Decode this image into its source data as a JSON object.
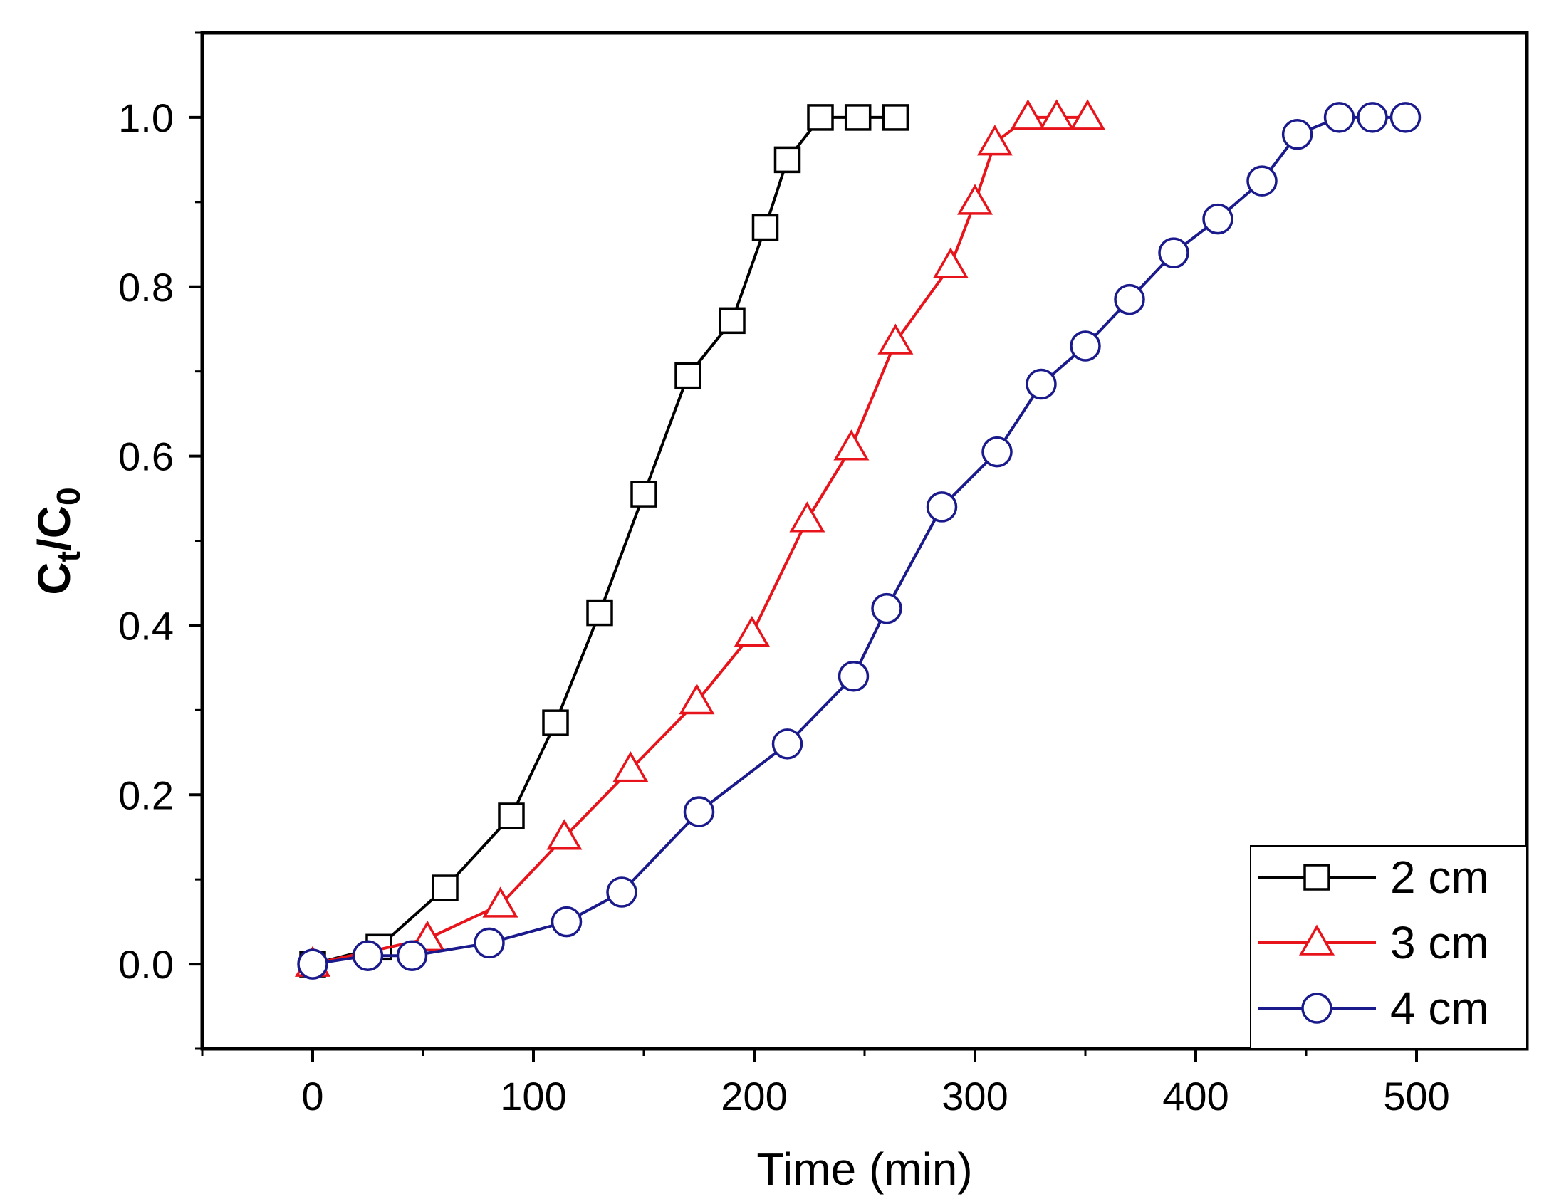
{
  "chart_data": {
    "type": "line",
    "title": "",
    "xlabel": "Time (min)",
    "ylabel": {
      "main": "C",
      "sub1": "t",
      "sep": "/C",
      "sub2": "0"
    },
    "xlim": [
      -50,
      550
    ],
    "ylim": [
      -0.1,
      1.1
    ],
    "xticks": [
      0,
      100,
      200,
      300,
      400,
      500
    ],
    "xtick_labels": [
      "0",
      "100",
      "200",
      "300",
      "400",
      "500"
    ],
    "yticks": [
      0.0,
      0.2,
      0.4,
      0.6,
      0.8,
      1.0
    ],
    "ytick_labels": [
      "0.0",
      "0.2",
      "0.4",
      "0.6",
      "0.8",
      "1.0"
    ],
    "grid": false,
    "legend_position": "bottom-right",
    "series": [
      {
        "name": "2 cm",
        "color": "#000000",
        "marker": "square",
        "x": [
          0,
          30,
          60,
          90,
          110,
          130,
          150,
          170,
          190,
          205,
          215,
          230,
          247,
          264
        ],
        "y": [
          0.0,
          0.02,
          0.09,
          0.175,
          0.285,
          0.415,
          0.555,
          0.695,
          0.76,
          0.87,
          0.95,
          1.0,
          1.0,
          1.0
        ]
      },
      {
        "name": "3 cm",
        "color": "#e8141c",
        "marker": "triangle",
        "x": [
          0,
          52,
          85,
          114,
          144,
          174,
          199,
          224,
          244,
          264,
          289,
          300,
          309,
          324,
          337,
          351
        ],
        "y": [
          0.0,
          0.03,
          0.07,
          0.15,
          0.23,
          0.31,
          0.39,
          0.525,
          0.61,
          0.735,
          0.825,
          0.9,
          0.97,
          1.0,
          1.0,
          1.0
        ]
      },
      {
        "name": "4 cm",
        "color": "#1a1a8c",
        "marker": "circle",
        "x": [
          0,
          25,
          45,
          80,
          115,
          140,
          175,
          215,
          245,
          260,
          285,
          310,
          330,
          350,
          370,
          390,
          410,
          430,
          446,
          465,
          480,
          495
        ],
        "y": [
          0.0,
          0.01,
          0.01,
          0.025,
          0.05,
          0.085,
          0.18,
          0.26,
          0.34,
          0.42,
          0.54,
          0.605,
          0.685,
          0.73,
          0.785,
          0.84,
          0.88,
          0.925,
          0.98,
          1.0,
          1.0,
          1.0
        ]
      }
    ]
  }
}
